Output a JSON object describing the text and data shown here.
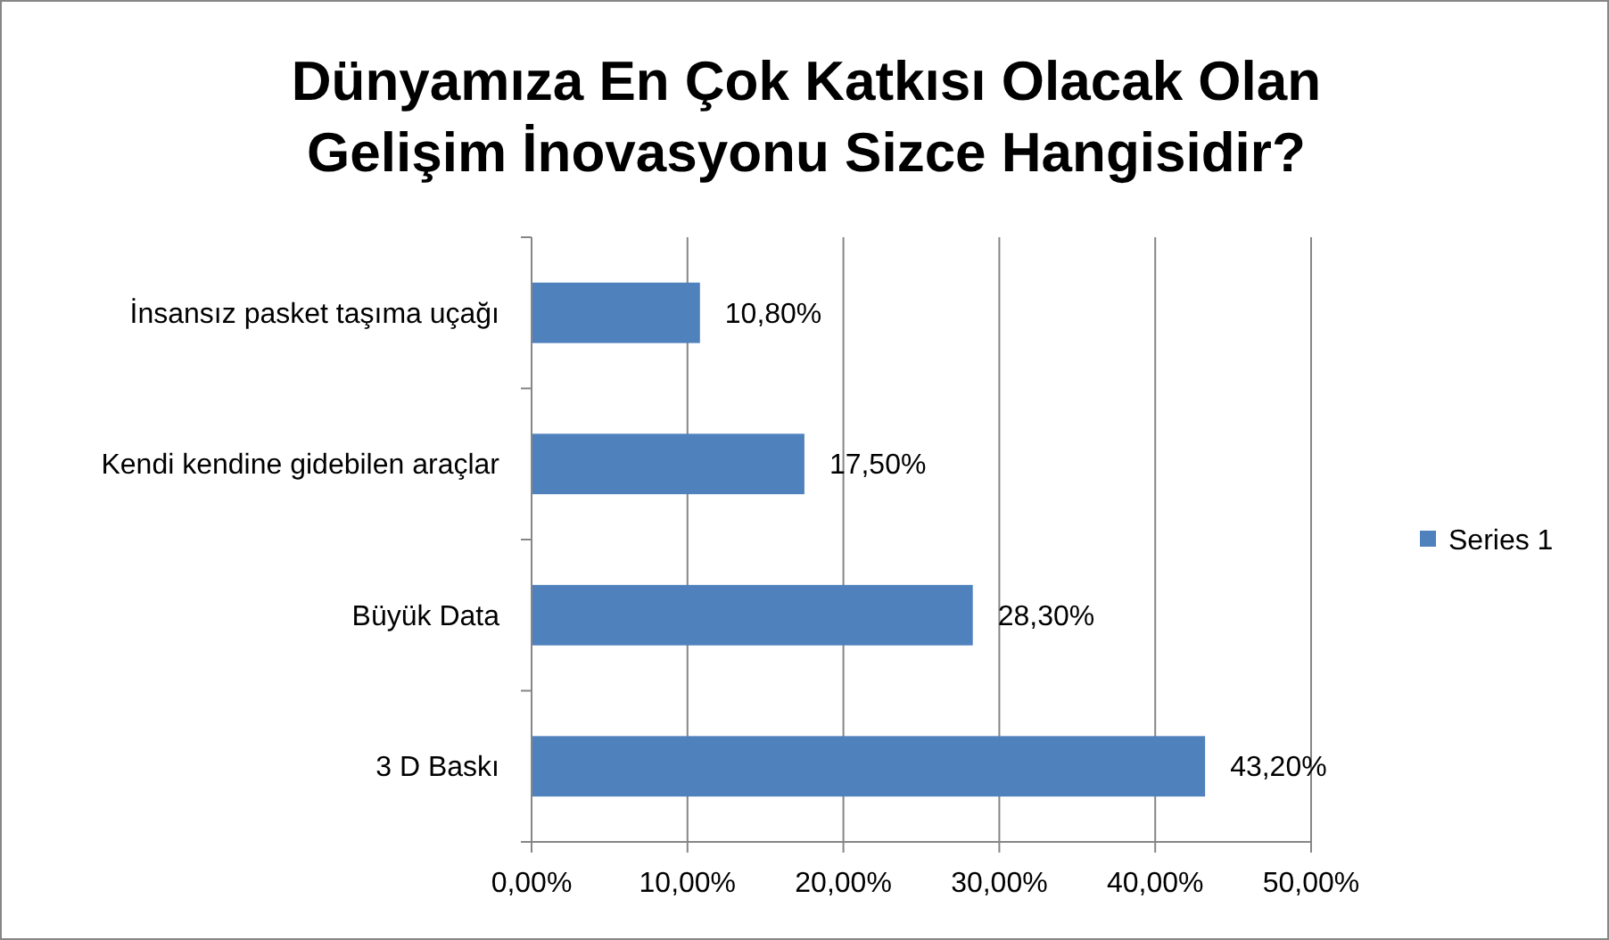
{
  "chart_data": {
    "type": "bar",
    "orientation": "horizontal",
    "title": "Dünyamıza En Çok Katkısı Olacak Olan\nGelişim İnovasyonu Sizce Hangisidir?",
    "categories": [
      "İnsansız pasket taşıma uçağı",
      "Kendi kendine gidebilen araçlar",
      "Büyük Data",
      "3 D Baskı"
    ],
    "series": [
      {
        "name": "Series 1",
        "color": "#4f81bd",
        "values": [
          10.8,
          17.5,
          28.3,
          43.2
        ]
      }
    ],
    "value_labels": [
      "10,80%",
      "17,50%",
      "28,30%",
      "43,20%"
    ],
    "xlim": [
      0,
      50
    ],
    "xticks": [
      {
        "value": 0,
        "label": "0,00%"
      },
      {
        "value": 10,
        "label": "10,00%"
      },
      {
        "value": 20,
        "label": "20,00%"
      },
      {
        "value": 30,
        "label": "30,00%"
      },
      {
        "value": 40,
        "label": "40,00%"
      },
      {
        "value": 50,
        "label": "50,00%"
      }
    ],
    "grid": "x",
    "legend": "right"
  }
}
